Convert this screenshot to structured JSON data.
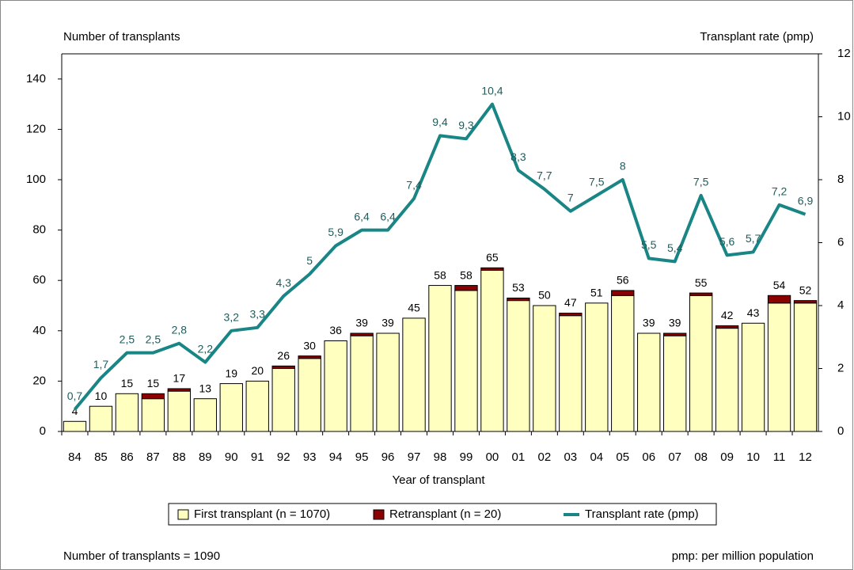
{
  "chart_data": {
    "type": "bar",
    "y_label": "Number of transplants",
    "y2_label": "Transplant rate (pmp)",
    "x_label": "Year of transplant",
    "footnote_left": "Number of transplants = 1090",
    "footnote_right": "pmp: per million population",
    "categories": [
      "84",
      "85",
      "86",
      "87",
      "88",
      "89",
      "90",
      "91",
      "92",
      "93",
      "94",
      "95",
      "96",
      "97",
      "98",
      "99",
      "00",
      "01",
      "02",
      "03",
      "04",
      "05",
      "06",
      "07",
      "08",
      "09",
      "10",
      "11",
      "12"
    ],
    "series": [
      {
        "name": "First transplant (n = 1070)",
        "type": "bar",
        "color": "#ffffc0",
        "values": [
          4,
          10,
          15,
          13,
          16,
          13,
          19,
          20,
          25,
          29,
          36,
          38,
          39,
          45,
          58,
          56,
          64,
          52,
          50,
          46,
          51,
          54,
          39,
          38,
          54,
          41,
          43,
          51,
          51
        ]
      },
      {
        "name": "Retransplant (n = 20)",
        "type": "bar",
        "color": "#8b0000",
        "values": [
          0,
          0,
          0,
          2,
          1,
          0,
          0,
          0,
          1,
          1,
          0,
          1,
          0,
          0,
          0,
          2,
          1,
          1,
          0,
          1,
          0,
          2,
          0,
          1,
          1,
          1,
          0,
          3,
          1
        ]
      },
      {
        "name": "Transplant rate (pmp)",
        "type": "line",
        "axis": "y2",
        "color": "#1a8585",
        "values": [
          0.7,
          1.7,
          2.5,
          2.5,
          2.8,
          2.2,
          3.2,
          3.3,
          4.3,
          5,
          5.9,
          6.4,
          6.4,
          7.4,
          9.4,
          9.3,
          10.4,
          8.3,
          7.7,
          7,
          7.5,
          8,
          5.5,
          5.4,
          7.5,
          5.6,
          5.7,
          7.2,
          6.9
        ],
        "value_labels": [
          "0,7",
          "1,7",
          "2,5",
          "2,5",
          "2,8",
          "2,2",
          "3,2",
          "3,3",
          "4,3",
          "5",
          "5,9",
          "6,4",
          "6,4",
          "7,4",
          "9,4",
          "9,3",
          "10,4",
          "8,3",
          "7,7",
          "7",
          "7,5",
          "8",
          "5,5",
          "5,4",
          "7,5",
          "5,6",
          "5,7",
          "7,2",
          "6,9"
        ]
      }
    ],
    "totals": [
      4,
      10,
      15,
      15,
      17,
      13,
      19,
      20,
      26,
      30,
      36,
      39,
      39,
      45,
      58,
      58,
      65,
      53,
      50,
      47,
      51,
      56,
      39,
      39,
      55,
      42,
      43,
      54,
      52
    ],
    "ylim": [
      0,
      150
    ],
    "yticks": [
      0,
      20,
      40,
      60,
      80,
      100,
      120,
      140
    ],
    "y2lim": [
      0,
      12
    ],
    "y2ticks": [
      0,
      2,
      4,
      6,
      8,
      10,
      12
    ],
    "grid": false
  }
}
